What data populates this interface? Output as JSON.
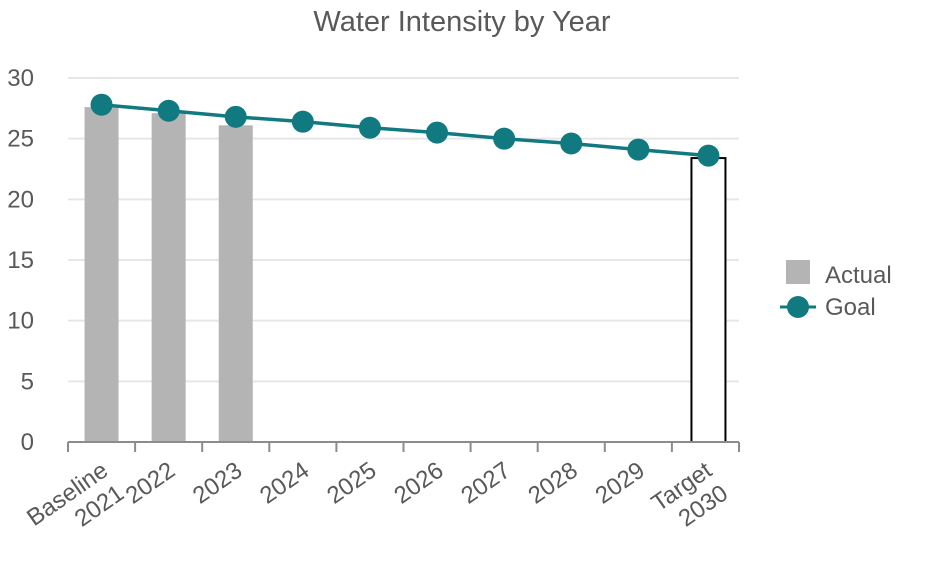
{
  "chart_data": {
    "type": "bar",
    "title": "Water Intensity by Year",
    "categories": [
      [
        "Baseline",
        "2021"
      ],
      [
        "2022"
      ],
      [
        "2023"
      ],
      [
        "2024"
      ],
      [
        "2025"
      ],
      [
        "2026"
      ],
      [
        "2027"
      ],
      [
        "2028"
      ],
      [
        "2029"
      ],
      [
        "Target",
        "2030"
      ]
    ],
    "series": [
      {
        "name": "Actual",
        "type": "bar",
        "values": [
          27.6,
          27.1,
          26.1,
          null,
          null,
          null,
          null,
          null,
          null,
          23.4
        ],
        "color": "#b4b4b4",
        "target_style": {
          "fill": "#ffffff",
          "stroke": "#000000"
        }
      },
      {
        "name": "Goal",
        "type": "line",
        "values": [
          27.8,
          27.3,
          26.8,
          26.4,
          25.9,
          25.5,
          25.0,
          24.6,
          24.1,
          23.6
        ],
        "color": "#117a80"
      }
    ],
    "ylim": [
      0,
      30
    ],
    "yticks": [
      0,
      5,
      10,
      15,
      20,
      25,
      30
    ],
    "grid": true,
    "legend": "right",
    "xlabel": "",
    "ylabel": ""
  }
}
